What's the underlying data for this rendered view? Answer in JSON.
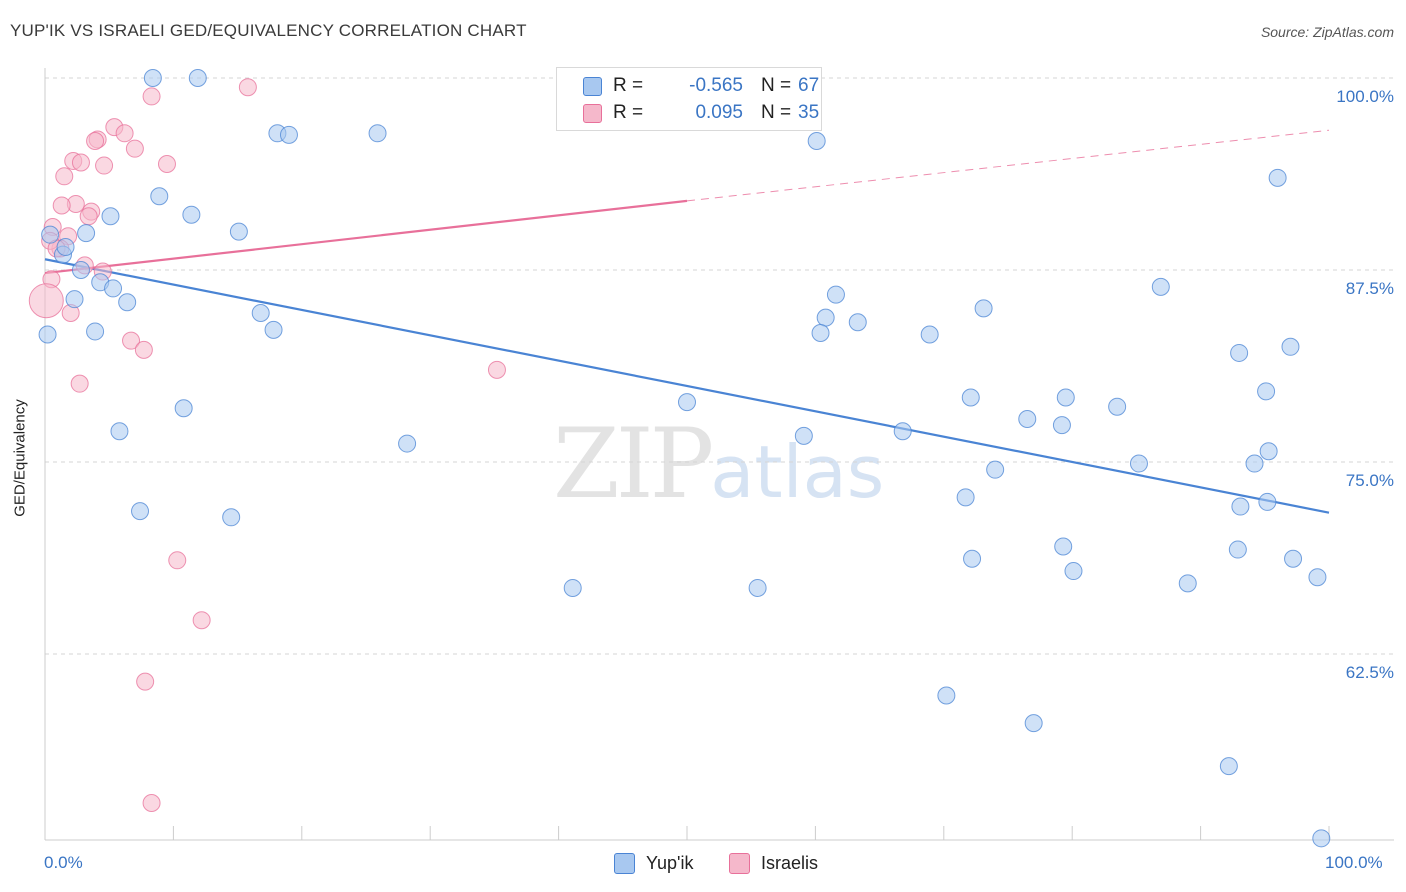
{
  "title": "YUP'IK VS ISRAELI GED/EQUIVALENCY CORRELATION CHART",
  "source": "Source: ZipAtlas.com",
  "watermark_zip": "ZIP",
  "watermark_atlas": "atlas",
  "legend": {
    "rows": [
      {
        "r_label": "R =",
        "r_value": "-0.565",
        "n_label": "N =",
        "n_value": "67",
        "color": "#a8c8f0"
      },
      {
        "r_label": "R =",
        "r_value": "0.095",
        "n_label": "N =",
        "n_value": "35",
        "color": "#f5b8cb"
      }
    ]
  },
  "bottom_legend": [
    {
      "label": "Yup'ik",
      "color": "#a8c8f0"
    },
    {
      "label": "Israelis",
      "color": "#f5b8cb"
    }
  ],
  "chart_data": {
    "type": "scatter",
    "title": "YUP'IK VS ISRAELI GED/EQUIVALENCY CORRELATION CHART",
    "xlabel": "",
    "ylabel": "GED/Equivalency",
    "x_tick_labels": [
      "0.0%",
      "100.0%"
    ],
    "y_tick_labels": [
      "100.0%",
      "87.5%",
      "75.0%",
      "62.5%"
    ],
    "y_ticks": [
      100.0,
      87.5,
      75.0,
      62.5
    ],
    "xlim": [
      0,
      100
    ],
    "ylim": [
      50.5,
      101.5
    ],
    "grid": true,
    "series": [
      {
        "name": "Yup'ik",
        "color": "#4a84d4",
        "fill": "#a8c8f0",
        "points": [
          [
            8.4,
            100.0
          ],
          [
            11.9,
            100.0
          ],
          [
            18.1,
            96.4
          ],
          [
            19.0,
            96.3
          ],
          [
            25.9,
            96.4
          ],
          [
            60.1,
            95.9
          ],
          [
            96.0,
            93.5
          ],
          [
            8.9,
            92.3
          ],
          [
            5.1,
            91.0
          ],
          [
            11.4,
            91.1
          ],
          [
            15.1,
            90.0
          ],
          [
            0.4,
            89.8
          ],
          [
            3.2,
            89.9
          ],
          [
            1.4,
            88.5
          ],
          [
            2.8,
            87.5
          ],
          [
            4.3,
            86.7
          ],
          [
            5.3,
            86.3
          ],
          [
            6.4,
            85.4
          ],
          [
            2.3,
            85.6
          ],
          [
            16.8,
            84.7
          ],
          [
            17.8,
            83.6
          ],
          [
            60.8,
            84.4
          ],
          [
            60.4,
            83.4
          ],
          [
            0.2,
            83.3
          ],
          [
            3.9,
            83.5
          ],
          [
            61.6,
            85.9
          ],
          [
            63.3,
            84.1
          ],
          [
            68.9,
            83.3
          ],
          [
            73.1,
            85.0
          ],
          [
            86.9,
            86.4
          ],
          [
            93.0,
            82.1
          ],
          [
            97.0,
            82.5
          ],
          [
            10.8,
            78.5
          ],
          [
            5.8,
            77.0
          ],
          [
            28.2,
            76.2
          ],
          [
            50.0,
            78.9
          ],
          [
            59.1,
            76.7
          ],
          [
            66.8,
            77.0
          ],
          [
            72.1,
            79.2
          ],
          [
            76.5,
            77.8
          ],
          [
            79.5,
            79.2
          ],
          [
            79.2,
            77.4
          ],
          [
            83.5,
            78.6
          ],
          [
            95.1,
            79.6
          ],
          [
            74.0,
            74.5
          ],
          [
            85.2,
            74.9
          ],
          [
            94.2,
            74.9
          ],
          [
            95.3,
            75.7
          ],
          [
            71.7,
            72.7
          ],
          [
            93.1,
            72.1
          ],
          [
            95.2,
            72.4
          ],
          [
            7.4,
            71.8
          ],
          [
            14.5,
            71.4
          ],
          [
            72.2,
            68.7
          ],
          [
            79.3,
            69.5
          ],
          [
            80.1,
            67.9
          ],
          [
            89.0,
            67.1
          ],
          [
            92.9,
            69.3
          ],
          [
            97.2,
            68.7
          ],
          [
            99.1,
            67.5
          ],
          [
            41.1,
            66.8
          ],
          [
            55.5,
            66.8
          ],
          [
            70.2,
            59.8
          ],
          [
            77.0,
            58.0
          ],
          [
            92.2,
            55.2
          ],
          [
            99.4,
            50.5
          ],
          [
            1.6,
            89.0
          ]
        ]
      },
      {
        "name": "Israelis",
        "color": "#e8709a",
        "fill": "#f5b8cb",
        "points": [
          [
            45.0,
            100.0
          ],
          [
            15.8,
            99.4
          ],
          [
            8.3,
            98.8
          ],
          [
            5.4,
            96.8
          ],
          [
            6.2,
            96.4
          ],
          [
            4.1,
            96.0
          ],
          [
            3.9,
            95.9
          ],
          [
            7.0,
            95.4
          ],
          [
            2.2,
            94.6
          ],
          [
            2.8,
            94.5
          ],
          [
            4.6,
            94.3
          ],
          [
            9.5,
            94.4
          ],
          [
            1.5,
            93.6
          ],
          [
            2.4,
            91.8
          ],
          [
            1.3,
            91.7
          ],
          [
            3.6,
            91.3
          ],
          [
            3.4,
            91.0
          ],
          [
            0.6,
            90.3
          ],
          [
            1.8,
            89.7
          ],
          [
            1.2,
            88.9
          ],
          [
            0.4,
            89.4
          ],
          [
            3.1,
            87.8
          ],
          [
            4.5,
            87.4
          ],
          [
            0.5,
            86.9
          ],
          [
            0.1,
            85.5
          ],
          [
            2.0,
            84.7
          ],
          [
            6.7,
            82.9
          ],
          [
            7.7,
            82.3
          ],
          [
            35.2,
            81.0
          ],
          [
            2.7,
            80.1
          ],
          [
            10.3,
            68.6
          ],
          [
            12.2,
            64.7
          ],
          [
            7.8,
            60.7
          ],
          [
            8.3,
            52.8
          ],
          [
            0.9,
            88.9
          ]
        ]
      }
    ],
    "trendlines": [
      {
        "series": "Yup'ik",
        "x": [
          0,
          100
        ],
        "y": [
          88.2,
          71.7
        ],
        "style": "solid"
      },
      {
        "series": "Israelis",
        "x": [
          0,
          50
        ],
        "y": [
          87.3,
          92.0
        ],
        "style": "solid"
      },
      {
        "series": "Israelis",
        "x": [
          50,
          100
        ],
        "y": [
          92.0,
          96.6
        ],
        "style": "dashed"
      }
    ]
  }
}
